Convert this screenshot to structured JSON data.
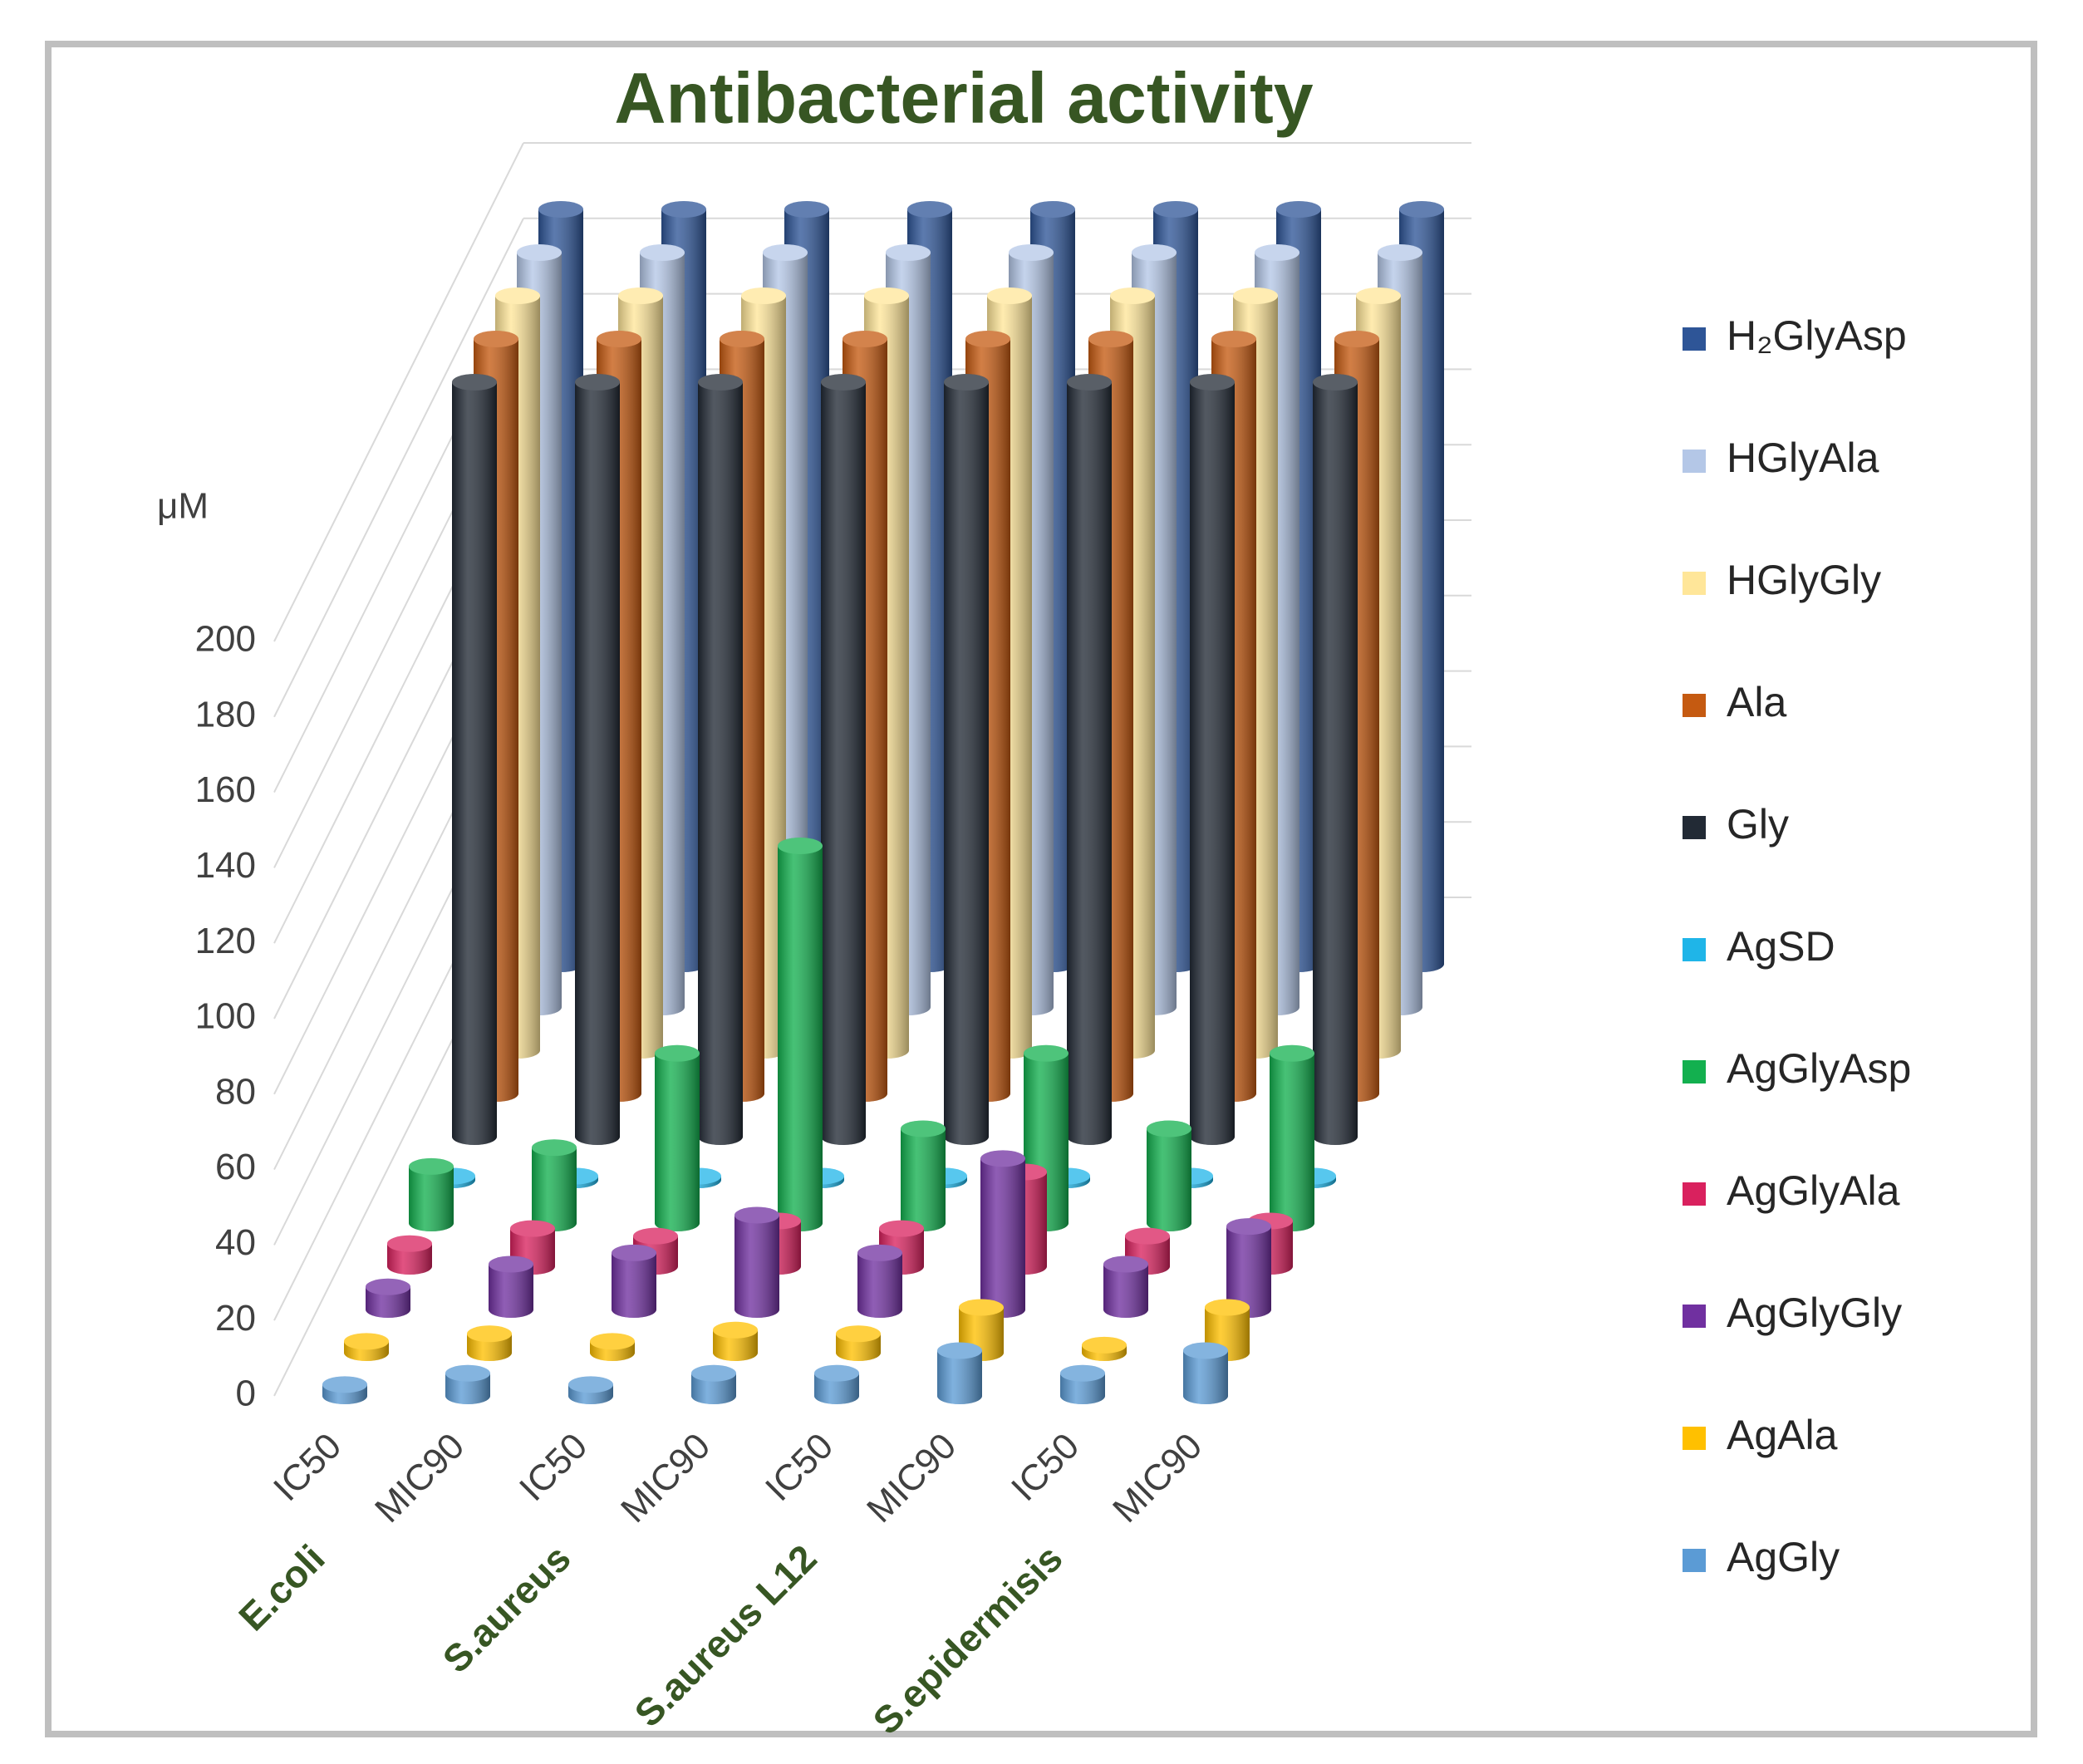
{
  "chart_data": {
    "type": "cylinder3d",
    "title": "Antibacterial activity",
    "y_label": "μM",
    "categories": [
      "IC50",
      "MIC90",
      "IC50",
      "MIC90",
      "IC50",
      "MIC90",
      "IC50",
      "MIC90"
    ],
    "groups": [
      "E.coli",
      "S.aureus",
      "S.aureus L12",
      "S.epidermisis"
    ],
    "ylim": [
      0,
      200
    ],
    "yticks": [
      0,
      20,
      40,
      60,
      80,
      100,
      120,
      140,
      160,
      180,
      200
    ],
    "grid": true,
    "legend": "right",
    "series": [
      {
        "name": "H₂GlyAsp",
        "color": "#2e5597",
        "values": [
          200,
          200,
          200,
          200,
          200,
          200,
          200,
          200
        ]
      },
      {
        "name": "HGlyAla",
        "color": "#b4c7e7",
        "values": [
          200,
          200,
          200,
          200,
          200,
          200,
          200,
          200
        ]
      },
      {
        "name": "HGlyGly",
        "color": "#ffe699",
        "values": [
          200,
          200,
          200,
          200,
          200,
          200,
          200,
          200
        ]
      },
      {
        "name": "Ala",
        "color": "#c55a11",
        "values": [
          200,
          200,
          200,
          200,
          200,
          200,
          200,
          200
        ]
      },
      {
        "name": "Gly",
        "color": "#222a35",
        "values": [
          200,
          200,
          200,
          200,
          200,
          200,
          200,
          200
        ]
      },
      {
        "name": "AgSD",
        "color": "#1fb5e8",
        "values": [
          1,
          1,
          1,
          1,
          1,
          1,
          1,
          1
        ]
      },
      {
        "name": "AgGlyAsp",
        "color": "#13b04f",
        "values": [
          15,
          20,
          45,
          100,
          25,
          45,
          25,
          45
        ]
      },
      {
        "name": "AgGlyAla",
        "color": "#d9215e",
        "values": [
          6,
          10,
          8,
          12,
          10,
          25,
          8,
          12
        ]
      },
      {
        "name": "AgGlyGly",
        "color": "#7030a0",
        "values": [
          6,
          12,
          15,
          25,
          15,
          40,
          12,
          22
        ]
      },
      {
        "name": "AgAla",
        "color": "#ffc000",
        "values": [
          3,
          5,
          3,
          6,
          5,
          12,
          2,
          12
        ]
      },
      {
        "name": "AgGly",
        "color": "#5b9bd5",
        "values": [
          3,
          6,
          3,
          6,
          6,
          12,
          6,
          12
        ]
      }
    ]
  }
}
